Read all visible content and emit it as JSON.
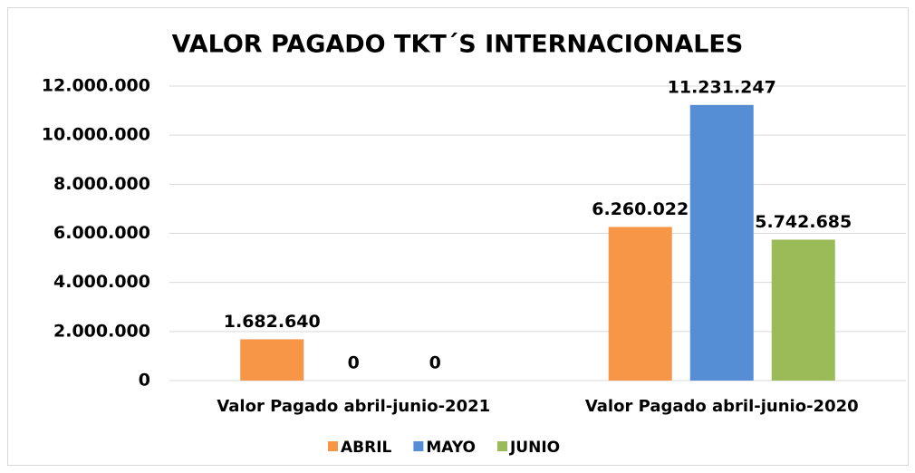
{
  "chart_data": {
    "type": "bar",
    "title": "VALOR PAGADO TKT´S INTERNACIONALES",
    "categories": [
      "Valor Pagado abril-junio-2021",
      "Valor Pagado abril-junio-2020"
    ],
    "series": [
      {
        "name": "ABRIL",
        "color": "#f79646",
        "values": [
          1682640,
          6260022
        ],
        "value_labels": [
          "1.682.640",
          "6.260.022"
        ]
      },
      {
        "name": "MAYO",
        "color": "#558ed5",
        "values": [
          0,
          11231247
        ],
        "value_labels": [
          "0",
          "11.231.247"
        ]
      },
      {
        "name": "JUNIO",
        "color": "#9bbb59",
        "values": [
          0,
          5742685
        ],
        "value_labels": [
          "0",
          "5.742.685"
        ]
      }
    ],
    "ylim": [
      0,
      12000000
    ],
    "yticks": [
      0,
      {
        "value": 2000000,
        "label": "2.000.000"
      },
      {
        "value": 4000000,
        "label": "4.000.000"
      },
      {
        "value": 6000000,
        "label": "6.000.000"
      },
      {
        "value": 8000000,
        "label": "8.000.000"
      },
      {
        "value": 10000000,
        "label": "10.000.000"
      },
      {
        "value": 12000000,
        "label": "12.000.000"
      }
    ],
    "grid": true,
    "legend": "bottom"
  }
}
